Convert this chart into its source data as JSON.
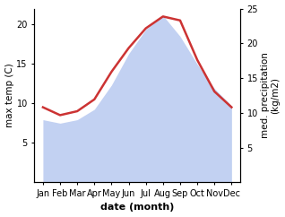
{
  "months": [
    "Jan",
    "Feb",
    "Mar",
    "Apr",
    "May",
    "Jun",
    "Jul",
    "Aug",
    "Sep",
    "Oct",
    "Nov",
    "Dec"
  ],
  "month_positions": [
    1,
    2,
    3,
    4,
    5,
    6,
    7,
    8,
    9,
    10,
    11,
    12
  ],
  "temp_line": [
    9.5,
    8.5,
    9.0,
    10.5,
    14.0,
    17.0,
    19.5,
    21.0,
    20.5,
    15.5,
    11.5,
    9.5
  ],
  "precip_area": [
    9.0,
    8.5,
    9.0,
    10.5,
    14.0,
    18.5,
    22.0,
    24.0,
    21.0,
    17.0,
    13.5,
    11.0
  ],
  "temp_color": "#cc3333",
  "precip_color": "#b8c9f0",
  "ylabel_left": "max temp (C)",
  "ylabel_right": "med. precipitation\n(kg/m2)",
  "xlabel": "date (month)",
  "ylim_left": [
    0,
    22
  ],
  "ylim_right": [
    0,
    25
  ],
  "yticks_left": [
    5,
    10,
    15,
    20
  ],
  "yticks_right": [
    5,
    10,
    15,
    20,
    25
  ],
  "bg_color": "#ffffff",
  "label_fontsize": 7.5,
  "tick_fontsize": 7.0
}
